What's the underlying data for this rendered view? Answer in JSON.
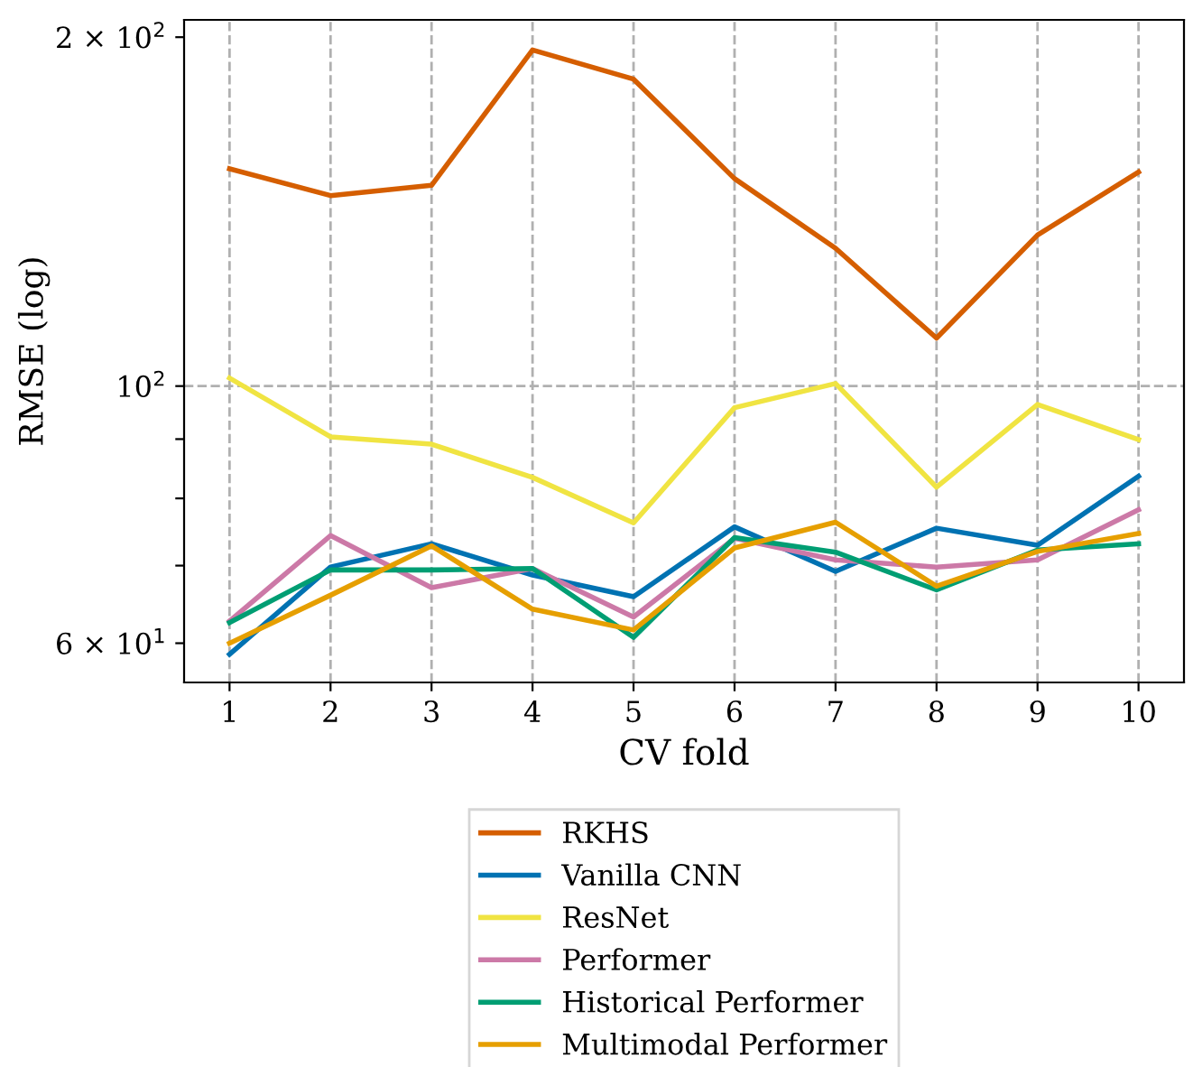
{
  "chart_data": {
    "type": "line",
    "xlabel": "CV fold",
    "ylabel": "RMSE (log)",
    "x": [
      1,
      2,
      3,
      4,
      5,
      6,
      7,
      8,
      9,
      10
    ],
    "xlim": [
      0.55,
      10.45
    ],
    "xticks": [
      1,
      2,
      3,
      4,
      5,
      6,
      7,
      8,
      9,
      10
    ],
    "ylim": [
      55.5,
      207
    ],
    "yticks": [
      {
        "value": 60,
        "label": "6 × 10$^{1}$"
      },
      {
        "value": 70,
        "label": null
      },
      {
        "value": 80,
        "label": null
      },
      {
        "value": 90,
        "label": null
      },
      {
        "value": 100,
        "label": "10$^{2}$"
      },
      {
        "value": 200,
        "label": "2 × 10$^{2}$"
      }
    ],
    "log": "y",
    "grid": true,
    "legend": "bottom",
    "marker": "none",
    "line_style": "solid",
    "series": [
      {
        "name": "RKHS",
        "color": "#d55e00",
        "values": [
          154,
          146,
          149,
          195,
          184,
          151,
          131.5,
          110,
          135,
          153
        ]
      },
      {
        "name": "Vanilla CNN",
        "color": "#0072b2",
        "values": [
          58.7,
          69.8,
          73.1,
          68.7,
          65.8,
          75.6,
          69.2,
          75.4,
          72.9,
          83.6
        ]
      },
      {
        "name": "ResNet",
        "color": "#f0e442",
        "values": [
          101.6,
          90.4,
          89.1,
          83.4,
          76.2,
          95.8,
          100.5,
          81.8,
          96.4,
          89.9
        ]
      },
      {
        "name": "Performer",
        "color": "#cc79a7",
        "values": [
          62.7,
          74.3,
          67.0,
          69.6,
          63.2,
          73.9,
          70.8,
          69.8,
          70.8,
          78.2
        ]
      },
      {
        "name": "Historical Performer",
        "color": "#009e73",
        "values": [
          62.5,
          69.4,
          69.4,
          69.6,
          60.7,
          74.0,
          71.9,
          66.7,
          72.2,
          73.1
        ]
      },
      {
        "name": "Multimodal Performer",
        "color": "#e69f00",
        "values": [
          60.0,
          66.0,
          72.8,
          64.2,
          61.6,
          72.5,
          76.3,
          67.2,
          72.0,
          74.6
        ]
      }
    ]
  }
}
